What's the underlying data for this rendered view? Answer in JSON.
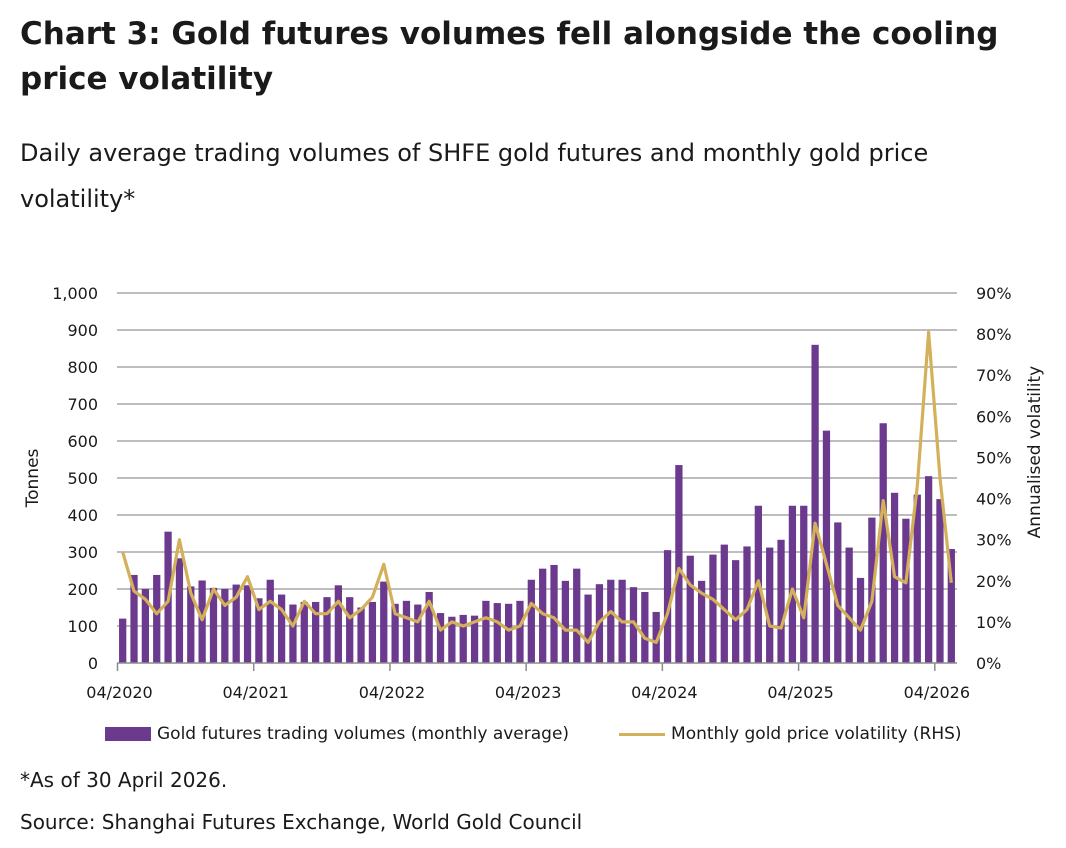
{
  "title": "Chart 3: Gold futures volumes fell alongside the cooling price volatility",
  "subtitle": "Daily average trading volumes of SHFE gold futures and monthly gold price volatility*",
  "footnote": "*As of 30 April 2026.",
  "source": "Source: Shanghai Futures Exchange, World Gold Council",
  "legend": {
    "bars": "Gold futures trading volumes (monthly average)",
    "line": "Monthly gold price volatility (RHS)"
  },
  "colors": {
    "bars": "#6b3a8e",
    "line": "#d4b05a",
    "grid": "#bdbdbd"
  },
  "chart_data": {
    "type": "bar+line",
    "ylabel": "Tonnes",
    "y2label": "Annualised volatility",
    "ylim": [
      0,
      1000
    ],
    "y2lim": [
      0,
      90
    ],
    "yticks": [
      "0",
      "100",
      "200",
      "300",
      "400",
      "500",
      "600",
      "700",
      "800",
      "900",
      "1,000"
    ],
    "y2ticks": [
      "0%",
      "10%",
      "20%",
      "30%",
      "40%",
      "50%",
      "60%",
      "70%",
      "80%",
      "90%"
    ],
    "xticks": [
      "04/2020",
      "04/2021",
      "04/2022",
      "04/2023",
      "04/2024",
      "04/2025",
      "04/2026"
    ],
    "start_month": "04/2020",
    "series": [
      {
        "name": "Gold futures trading volumes (monthly average)",
        "kind": "bar",
        "axis": "left",
        "values": [
          120,
          238,
          200,
          238,
          355,
          283,
          207,
          223,
          203,
          200,
          212,
          210,
          175,
          225,
          185,
          158,
          165,
          165,
          178,
          210,
          178,
          150,
          165,
          220,
          160,
          168,
          158,
          192,
          135,
          125,
          130,
          128,
          168,
          162,
          160,
          168,
          225,
          255,
          265,
          222,
          255,
          185,
          213,
          225,
          225,
          205,
          192,
          138,
          305,
          535,
          290,
          222,
          293,
          320,
          278,
          315,
          425,
          312,
          333,
          425,
          425,
          860,
          628,
          380,
          312,
          230,
          393,
          648,
          460,
          390,
          455,
          505,
          443,
          308
        ]
      },
      {
        "name": "Monthly gold price volatility (RHS)",
        "kind": "line",
        "axis": "right",
        "values": [
          27,
          17.5,
          15.5,
          12,
          15,
          30,
          17,
          10.5,
          18,
          14,
          16,
          21,
          13,
          15,
          13,
          9,
          15,
          12,
          12,
          15,
          11,
          13,
          16,
          24,
          12,
          11,
          10,
          15,
          8,
          10,
          9,
          10,
          11,
          10,
          8,
          9,
          14.5,
          12,
          11,
          8,
          8,
          5,
          10,
          12.5,
          10,
          10,
          6,
          5,
          12,
          23,
          19,
          17,
          15.5,
          13,
          10.5,
          13,
          20,
          9,
          8.5,
          18,
          11,
          34,
          24,
          14,
          11,
          8,
          15,
          39.5,
          21,
          19.5,
          43,
          80.5,
          45,
          19.5
        ]
      }
    ]
  }
}
